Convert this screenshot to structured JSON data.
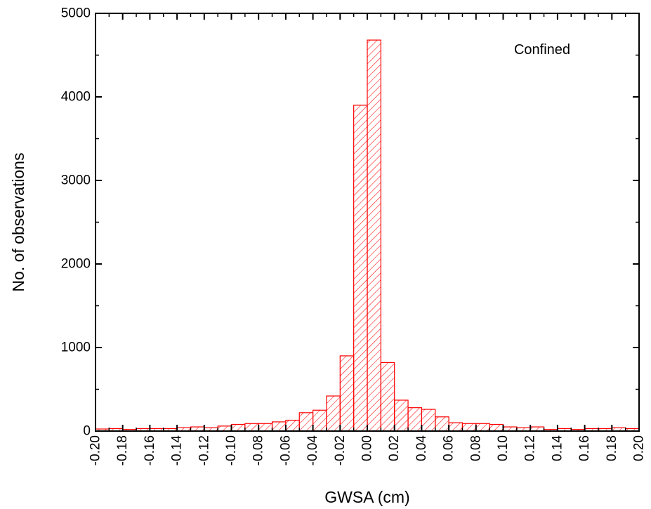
{
  "chart_data": {
    "type": "bar",
    "title": "",
    "xlabel": "GWSA (cm)",
    "ylabel": "No. of observations",
    "annotation": "Confined",
    "xlim": [
      -0.2,
      0.2
    ],
    "ylim": [
      0,
      5000
    ],
    "bin_width": 0.01,
    "x": [
      -0.195,
      -0.185,
      -0.175,
      -0.165,
      -0.155,
      -0.145,
      -0.135,
      -0.125,
      -0.115,
      -0.105,
      -0.095,
      -0.085,
      -0.075,
      -0.065,
      -0.055,
      -0.045,
      -0.035,
      -0.025,
      -0.015,
      -0.005,
      0.005,
      0.015,
      0.025,
      0.035,
      0.045,
      0.055,
      0.065,
      0.075,
      0.085,
      0.095,
      0.105,
      0.115,
      0.125,
      0.135,
      0.145,
      0.155,
      0.165,
      0.175,
      0.185,
      0.195
    ],
    "values": [
      25,
      30,
      20,
      30,
      30,
      30,
      40,
      50,
      40,
      60,
      80,
      90,
      90,
      110,
      130,
      220,
      250,
      420,
      900,
      3900,
      4680,
      820,
      370,
      280,
      260,
      170,
      100,
      90,
      90,
      80,
      50,
      40,
      50,
      20,
      30,
      20,
      30,
      30,
      40,
      30
    ],
    "x_ticks": [
      "-0.20",
      "-0.18",
      "-0.16",
      "-0.14",
      "-0.12",
      "-0.10",
      "-0.08",
      "-0.06",
      "-0.04",
      "-0.02",
      "0.00",
      "0.02",
      "0.04",
      "0.06",
      "0.08",
      "0.10",
      "0.12",
      "0.14",
      "0.16",
      "0.18",
      "0.20"
    ],
    "y_ticks": [
      "0",
      "1000",
      "2000",
      "3000",
      "4000",
      "5000"
    ],
    "grid": false,
    "bar_color": "#ff0000",
    "fill_pattern": "diagonal-hatch"
  }
}
